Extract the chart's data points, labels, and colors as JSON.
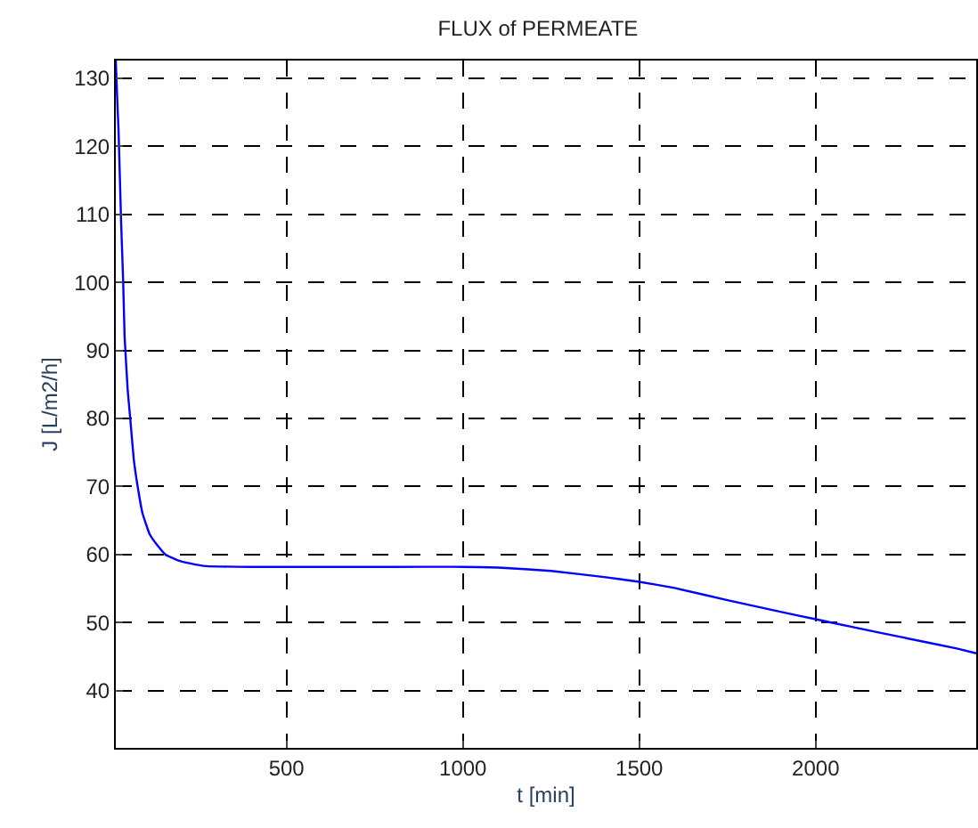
{
  "chart_data": {
    "type": "line",
    "title": "FLUX of PERMEATE",
    "xlabel": "t [min]",
    "ylabel": "J [L/m2/h]",
    "xlim": [
      16,
      2455
    ],
    "ylim": [
      31.6,
      132.6
    ],
    "xticks": [
      500,
      1000,
      1500,
      2000
    ],
    "yticks": [
      40,
      50,
      60,
      70,
      80,
      90,
      100,
      110,
      120,
      130
    ],
    "grid": true,
    "line_style": "solid",
    "series": [
      {
        "color": "#0000ff",
        "x": [
          16,
          20,
          24,
          31,
          37,
          41,
          50,
          57,
          67,
          78,
          92,
          112,
          135,
          157,
          190,
          228,
          273,
          400,
          600,
          800,
          1000,
          1100,
          1250,
          1400,
          1500,
          1600,
          1750,
          1900,
          2000,
          2100,
          2250,
          2400,
          2455
        ],
        "values": [
          132.6,
          127,
          122,
          109,
          100,
          92,
          84,
          80,
          74,
          70,
          66,
          63,
          61.3,
          60,
          59.2,
          58.7,
          58.3,
          58.2,
          58.2,
          58.2,
          58.2,
          58.1,
          57.6,
          56.7,
          56,
          55.1,
          53.3,
          51.6,
          50.5,
          49.4,
          47.8,
          46.2,
          45.5
        ]
      }
    ]
  }
}
